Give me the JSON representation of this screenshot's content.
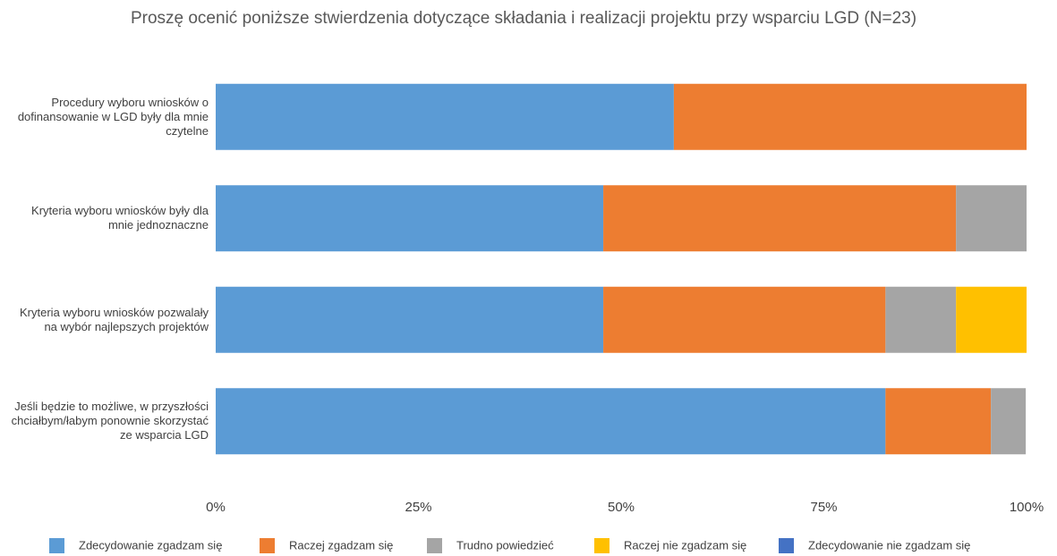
{
  "chart_data": {
    "type": "stacked-barh",
    "title": "Proszę ocenić poniższe stwierdzenia dotyczące składania i realizacji projektu przy wsparciu LGD (N=23)",
    "categories": [
      "Procedury wyboru wniosków o dofinansowanie w LGD były dla mnie czytelne",
      "Kryteria wyboru wniosków były dla mnie jednoznaczne",
      "Kryteria wyboru wniosków pozwalały na wybór najlepszych projektów",
      "Jeśli będzie to możliwe, w przyszłości chciałbym/łabym ponownie skorzystać ze wsparcia LGD"
    ],
    "series": [
      {
        "name": "Zdecydowanie zgadzam się",
        "color": "#5b9bd5",
        "values": [
          56.5,
          47.8,
          47.8,
          82.6
        ]
      },
      {
        "name": "Raczej zgadzam się",
        "color": "#ed7d31",
        "values": [
          43.5,
          43.5,
          34.8,
          13.0
        ]
      },
      {
        "name": "Trudno powiedzieć",
        "color": "#a5a5a5",
        "values": [
          0,
          8.7,
          8.7,
          4.3
        ]
      },
      {
        "name": "Raczej nie zgadzam się",
        "color": "#ffc000",
        "values": [
          0,
          0,
          8.7,
          0
        ]
      },
      {
        "name": "Zdecydowanie nie zgadzam się",
        "color": "#4472c4",
        "values": [
          0,
          0,
          0,
          0
        ]
      }
    ],
    "xlim": [
      0,
      100
    ],
    "xticks": [
      {
        "value": 0,
        "label": "0%"
      },
      {
        "value": 25,
        "label": "25%"
      },
      {
        "value": 50,
        "label": "50%"
      },
      {
        "value": 75,
        "label": "75%"
      },
      {
        "value": 100,
        "label": "100%"
      }
    ],
    "legend": "bottom"
  }
}
